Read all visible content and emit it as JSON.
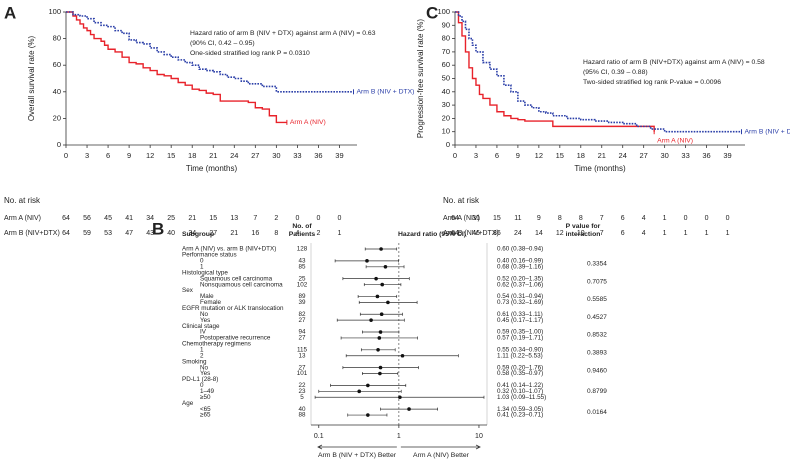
{
  "chart_data": [
    {
      "type": "km",
      "panel": "A",
      "ylabel": "Overall survival rate (%)",
      "xlabel": "Time (months)",
      "xlim": [
        0,
        41.5
      ],
      "ylim": [
        0,
        100
      ],
      "xticks": [
        0,
        3,
        6,
        9,
        12,
        15,
        18,
        21,
        24,
        27,
        30,
        33,
        36,
        39
      ],
      "yticks": [
        0,
        20,
        40,
        60,
        80,
        100
      ],
      "annotations": [
        "Hazard ratio of arm B (NIV + DTX) against arm A (NIV) = 0.63",
        "(90% CI, 0.42 – 0.95)",
        "One-sided stratified log rank P = 0.0310"
      ],
      "series": [
        {
          "name": "Arm A (NIV)",
          "color": "#e8222a",
          "style": "solid",
          "x": [
            0,
            1,
            1.5,
            2,
            2.5,
            3,
            3.5,
            4,
            5,
            5.5,
            6,
            7,
            8,
            9,
            10,
            11,
            12,
            13,
            14,
            15,
            16,
            17,
            18,
            19,
            20,
            21,
            22,
            24,
            26,
            27,
            28,
            29,
            30,
            31.5
          ],
          "values": [
            100,
            97,
            94,
            91,
            88,
            86,
            83,
            80,
            78,
            75,
            72,
            70,
            66,
            62,
            61,
            58,
            56,
            53,
            52,
            50,
            47,
            45,
            42,
            41,
            39,
            38,
            33,
            33,
            32,
            28,
            27,
            22,
            17,
            17
          ]
        },
        {
          "name": "Arm B (NIV + DTX)",
          "color": "#2b3fa8",
          "style": "dotted",
          "x": [
            0,
            1,
            2,
            3,
            4,
            5,
            6,
            7,
            8,
            9,
            10,
            11,
            12,
            13,
            14,
            15,
            16,
            17,
            18,
            19,
            20,
            21,
            22,
            23,
            24,
            25,
            26,
            27,
            28,
            30,
            33,
            36,
            39,
            41
          ],
          "values": [
            100,
            98,
            97,
            95,
            92,
            90,
            89,
            86,
            84,
            79,
            77,
            76,
            73,
            70,
            68,
            66,
            64,
            62,
            60,
            57,
            56,
            55,
            53,
            51,
            50,
            48,
            46,
            46,
            44,
            40,
            40,
            40,
            40,
            40
          ]
        }
      ],
      "risk_table": {
        "title": "No. at risk",
        "rows": [
          {
            "label": "Arm A (NIV)",
            "values": [
              64,
              56,
              45,
              41,
              34,
              25,
              21,
              15,
              13,
              7,
              2,
              0,
              0,
              0
            ]
          },
          {
            "label": "Arm B (NIV+DTX)",
            "values": [
              64,
              59,
              53,
              47,
              43,
              40,
              34,
              27,
              21,
              16,
              8,
              4,
              2,
              1
            ]
          }
        ]
      }
    },
    {
      "type": "km",
      "panel": "C",
      "ylabel": "Progression-free survival rate (%)",
      "xlabel": "Time (months)",
      "xlim": [
        0,
        41.5
      ],
      "ylim": [
        0,
        100
      ],
      "xticks": [
        0,
        3,
        6,
        9,
        12,
        15,
        18,
        21,
        24,
        27,
        30,
        33,
        36,
        39
      ],
      "yticks": [
        0,
        10,
        20,
        30,
        40,
        50,
        60,
        70,
        80,
        90,
        100
      ],
      "annotations": [
        "Hazard ratio of arm B (NIV+DTX) against arm A (NIV) = 0.58",
        "(95% CI, 0.39 – 0.88)",
        "Two-sided stratified log rank P-value = 0.0096"
      ],
      "series": [
        {
          "name": "Arm A (NIV)",
          "color": "#e8222a",
          "style": "solid",
          "x": [
            0,
            0.5,
            1,
            1.5,
            2,
            2.5,
            3,
            3.5,
            4,
            5,
            6,
            7,
            8,
            9,
            10,
            12,
            14,
            18,
            22,
            26,
            28.5
          ],
          "values": [
            100,
            92,
            82,
            70,
            58,
            50,
            45,
            38,
            35,
            30,
            25,
            22,
            20,
            19,
            18,
            18,
            14,
            14,
            14,
            14,
            10
          ]
        },
        {
          "name": "Arm B (NIV + DTX)",
          "color": "#2b3fa8",
          "style": "dotted",
          "x": [
            0,
            0.5,
            1,
            1.5,
            2,
            2.5,
            3,
            4,
            5,
            6,
            7,
            8,
            9,
            10,
            11,
            12,
            13,
            14,
            15,
            16,
            18,
            20,
            22,
            24,
            26,
            28,
            30,
            33,
            36,
            39,
            41
          ],
          "values": [
            100,
            97,
            93,
            87,
            80,
            75,
            70,
            62,
            57,
            52,
            45,
            40,
            33,
            30,
            28,
            25,
            24,
            22,
            22,
            20,
            19,
            18,
            17,
            16,
            14,
            12,
            10,
            10,
            10,
            10,
            10
          ]
        }
      ],
      "risk_table": {
        "title": "No. at risk",
        "rows": [
          {
            "label": "Arm A (NIV)",
            "values": [
              64,
              31,
              15,
              11,
              9,
              8,
              8,
              7,
              6,
              4,
              1,
              0,
              0,
              0
            ]
          },
          {
            "label": "Arm B (NIV+DTX)",
            "values": [
              64,
              46,
              36,
              24,
              14,
              12,
              10,
              7,
              6,
              4,
              1,
              1,
              1,
              1
            ]
          }
        ]
      }
    },
    {
      "type": "forest",
      "panel": "B",
      "log": true,
      "xlim": [
        0.08,
        12.6
      ],
      "xticks": [
        0.1,
        1,
        10
      ],
      "ref_line": 1,
      "headers": {
        "subgroup": "Subgroup",
        "n": [
          "No. of",
          "Patients"
        ],
        "hr": "Hazard ratio (95% CI)",
        "p": [
          "P value for",
          "interaction"
        ]
      },
      "better_labels": [
        "Arm B (NIV + DTX) Better",
        "Arm A (NIV) Better"
      ],
      "rows": [
        {
          "label": "Arm A (NIV) vs. arm B (NIV+DTX)",
          "n": 128,
          "hr": 0.6,
          "lo": 0.38,
          "hi": 0.94,
          "hr_label": "0.60 (0.38–0.94)"
        },
        {
          "label": "Performance status",
          "p": "0.3354",
          "items": [
            {
              "label": "0",
              "n": 43,
              "hr": 0.4,
              "lo": 0.16,
              "hi": 0.99,
              "hr_label": "0.40 (0.16–0.99)"
            },
            {
              "label": "1",
              "n": 85,
              "hr": 0.68,
              "lo": 0.39,
              "hi": 1.16,
              "hr_label": "0.68 (0.39–1.16)"
            }
          ]
        },
        {
          "label": "Histological type",
          "p": "0.7075",
          "items": [
            {
              "label": "Squamous cell carcinoma",
              "n": 25,
              "hr": 0.52,
              "lo": 0.2,
              "hi": 1.35,
              "hr_label": "0.52 (0.20–1.35)"
            },
            {
              "label": "Nonsquamous cell carcinoma",
              "n": 102,
              "hr": 0.62,
              "lo": 0.37,
              "hi": 1.06,
              "hr_label": "0.62 (0.37–1.06)"
            }
          ]
        },
        {
          "label": "Sex",
          "p": "0.5585",
          "items": [
            {
              "label": "Male",
              "n": 89,
              "hr": 0.54,
              "lo": 0.31,
              "hi": 0.94,
              "hr_label": "0.54 (0.31–0.94)"
            },
            {
              "label": "Female",
              "n": 39,
              "hr": 0.73,
              "lo": 0.32,
              "hi": 1.69,
              "hr_label": "0.73 (0.32–1.69)"
            }
          ]
        },
        {
          "label": "EGFR mutation or ALK translocation",
          "p": "0.4527",
          "items": [
            {
              "label": "No",
              "n": 82,
              "hr": 0.61,
              "lo": 0.33,
              "hi": 1.11,
              "hr_label": "0.61 (0.33–1.11)"
            },
            {
              "label": "Yes",
              "n": 27,
              "hr": 0.45,
              "lo": 0.17,
              "hi": 1.17,
              "hr_label": "0.45 (0.17–1.17)"
            }
          ]
        },
        {
          "label": "Clinical stage",
          "p": "0.8532",
          "items": [
            {
              "label": "IV",
              "n": 94,
              "hr": 0.59,
              "lo": 0.35,
              "hi": 1.0,
              "hr_label": "0.59 (0.35–1.00)"
            },
            {
              "label": "Postoperative recurrence",
              "n": 27,
              "hr": 0.57,
              "lo": 0.19,
              "hi": 1.71,
              "hr_label": "0.57 (0.19–1.71)"
            }
          ]
        },
        {
          "label": "Chemotherapy regimens",
          "p": "0.3893",
          "items": [
            {
              "label": "1",
              "n": 115,
              "hr": 0.55,
              "lo": 0.34,
              "hi": 0.9,
              "hr_label": "0.55 (0.34–0.90)"
            },
            {
              "label": "2",
              "n": 13,
              "hr": 1.11,
              "lo": 0.22,
              "hi": 5.53,
              "hr_label": "1.11 (0.22–5.53)"
            }
          ]
        },
        {
          "label": "Smoking",
          "p": "0.9460",
          "items": [
            {
              "label": "No",
              "n": 27,
              "hr": 0.59,
              "lo": 0.2,
              "hi": 1.76,
              "hr_label": "0.59 (0.20–1.76)"
            },
            {
              "label": "Yes",
              "n": 101,
              "hr": 0.58,
              "lo": 0.35,
              "hi": 0.97,
              "hr_label": "0.58 (0.35–0.97)"
            }
          ]
        },
        {
          "label": "PD-L1 (28-8)",
          "p": "0.8799",
          "items": [
            {
              "label": "0",
              "n": 22,
              "hr": 0.41,
              "lo": 0.14,
              "hi": 1.22,
              "hr_label": "0.41 (0.14–1.22)"
            },
            {
              "label": "1–49",
              "n": 23,
              "hr": 0.32,
              "lo": 0.1,
              "hi": 1.07,
              "hr_label": "0.32 (0.10–1.07)"
            },
            {
              "label": "≥50",
              "n": 5,
              "hr": 1.03,
              "lo": 0.09,
              "hi": 11.55,
              "hr_label": "1.03 (0.09–11.55)"
            }
          ]
        },
        {
          "label": "Age",
          "p": "0.0164",
          "items": [
            {
              "label": "<65",
              "n": 40,
              "hr": 1.34,
              "lo": 0.59,
              "hi": 3.05,
              "hr_label": "1.34 (0.59–3.05)"
            },
            {
              "label": "≥65",
              "n": 88,
              "hr": 0.41,
              "lo": 0.23,
              "hi": 0.71,
              "hr_label": "0.41 (0.23–0.71)"
            }
          ]
        }
      ]
    }
  ]
}
